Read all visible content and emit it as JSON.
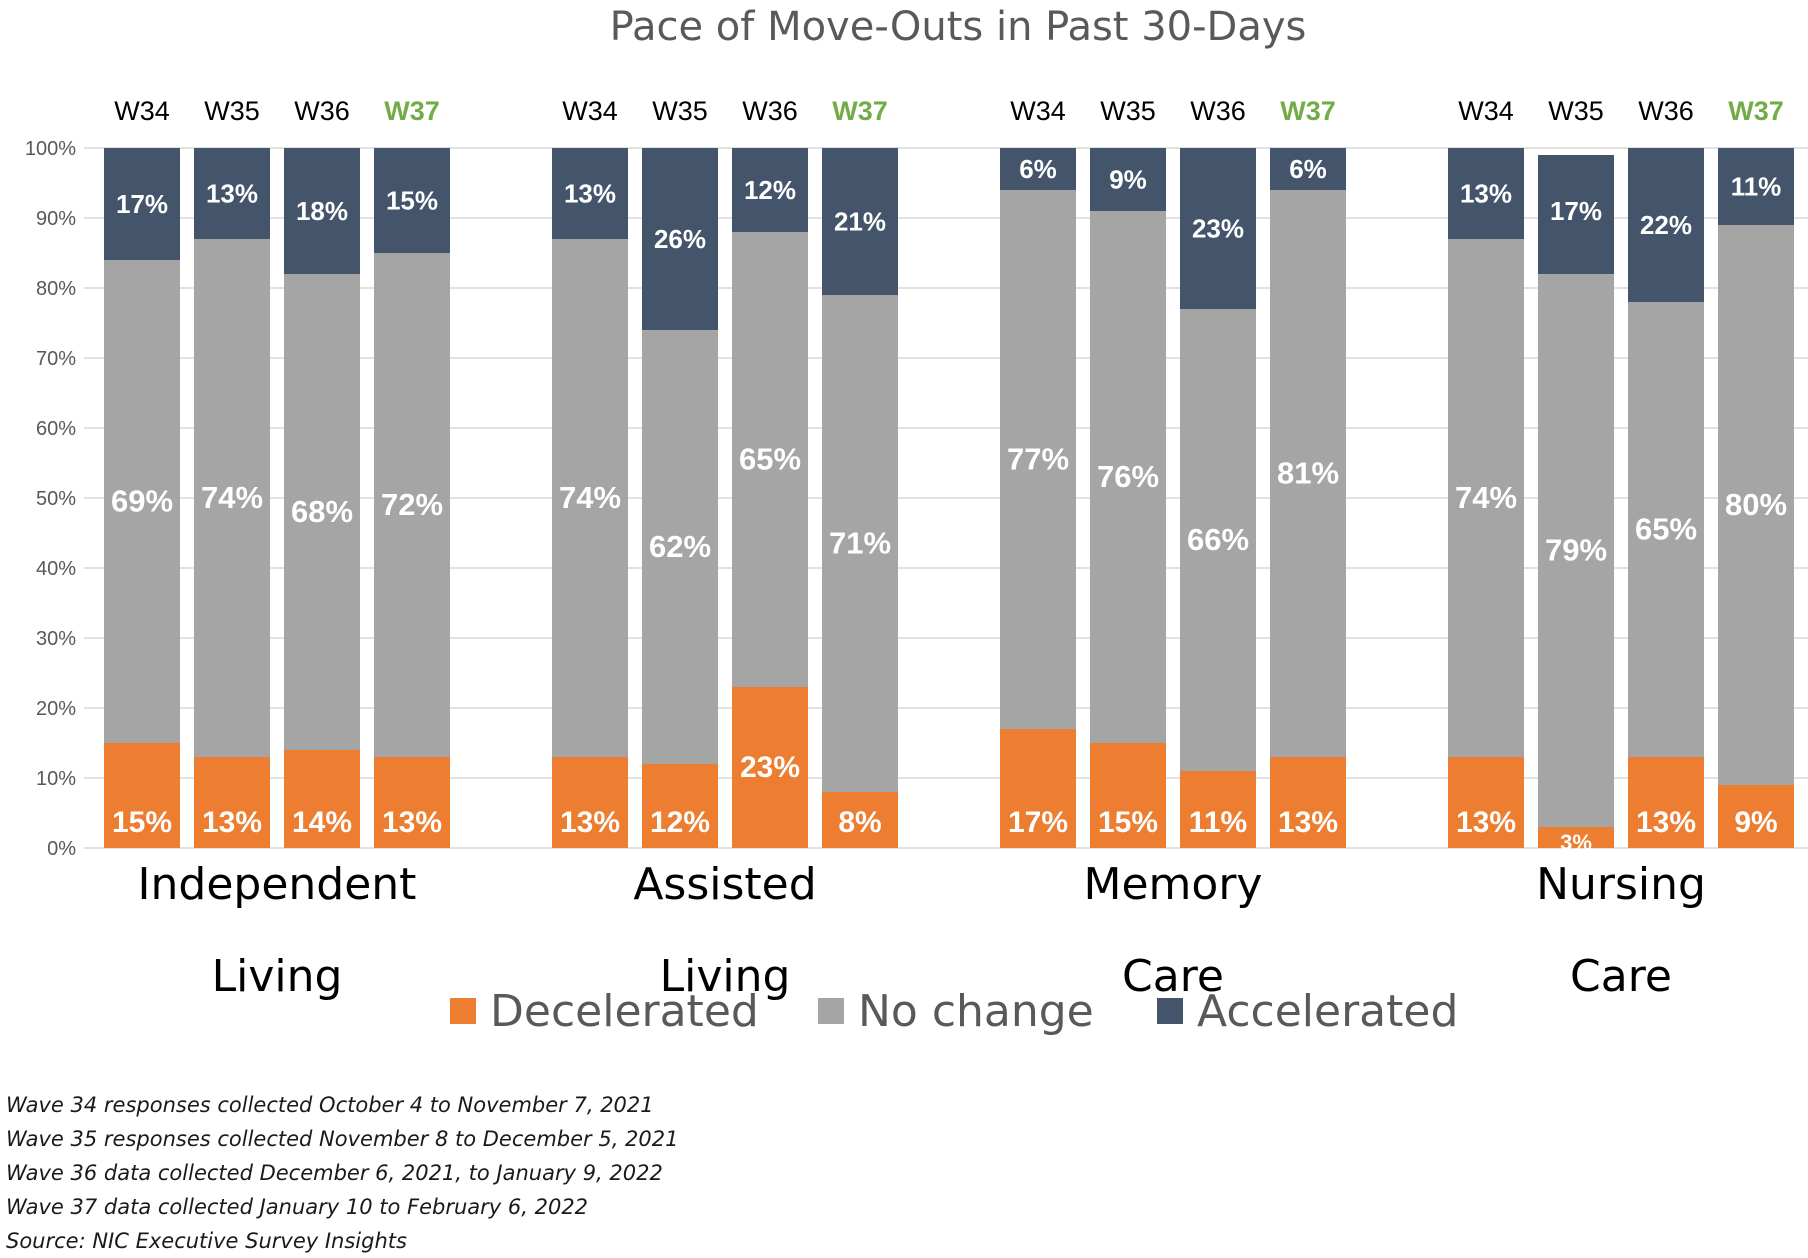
{
  "chart_data": {
    "type": "bar",
    "stacked": true,
    "title": "Pace of Move-Outs in Past 30-Days",
    "ylim": [
      0,
      100
    ],
    "y_ticks": [
      "0%",
      "10%",
      "20%",
      "30%",
      "40%",
      "50%",
      "60%",
      "70%",
      "80%",
      "90%",
      "100%"
    ],
    "legend": {
      "position": "bottom",
      "items": [
        {
          "name": "Decelerated",
          "color": "#ED7D31"
        },
        {
          "name": "No change",
          "color": "#A5A5A5"
        },
        {
          "name": "Accelerated",
          "color": "#44546A"
        }
      ]
    },
    "highlight_wave": "W37",
    "highlight_color": "#70AD47",
    "groups": [
      {
        "label_lines": [
          "Independent",
          "Living"
        ],
        "bars": [
          {
            "wave": "W34",
            "decelerated": 15,
            "no_change": 69,
            "accelerated": 17,
            "labels": [
              "15%",
              "69%",
              "17%"
            ]
          },
          {
            "wave": "W35",
            "decelerated": 13,
            "no_change": 74,
            "accelerated": 13,
            "labels": [
              "13%",
              "74%",
              "13%"
            ]
          },
          {
            "wave": "W36",
            "decelerated": 14,
            "no_change": 68,
            "accelerated": 18,
            "labels": [
              "14%",
              "68%",
              "18%"
            ]
          },
          {
            "wave": "W37",
            "decelerated": 13,
            "no_change": 72,
            "accelerated": 15,
            "labels": [
              "13%",
              "72%",
              "15%"
            ]
          }
        ]
      },
      {
        "label_lines": [
          "Assisted",
          "Living"
        ],
        "bars": [
          {
            "wave": "W34",
            "decelerated": 13,
            "no_change": 74,
            "accelerated": 13,
            "labels": [
              "13%",
              "74%",
              "13%"
            ]
          },
          {
            "wave": "W35",
            "decelerated": 12,
            "no_change": 62,
            "accelerated": 26,
            "labels": [
              "12%",
              "62%",
              "26%"
            ]
          },
          {
            "wave": "W36",
            "decelerated": 23,
            "no_change": 65,
            "accelerated": 12,
            "labels": [
              "23%",
              "65%",
              "12%"
            ]
          },
          {
            "wave": "W37",
            "decelerated": 8,
            "no_change": 71,
            "accelerated": 21,
            "labels": [
              "8%",
              "71%",
              "21%"
            ]
          }
        ]
      },
      {
        "label_lines": [
          "Memory",
          "Care"
        ],
        "bars": [
          {
            "wave": "W34",
            "decelerated": 17,
            "no_change": 77,
            "accelerated": 6,
            "labels": [
              "17%",
              "77%",
              "6%"
            ]
          },
          {
            "wave": "W35",
            "decelerated": 15,
            "no_change": 76,
            "accelerated": 9,
            "labels": [
              "15%",
              "76%",
              "9%"
            ]
          },
          {
            "wave": "W36",
            "decelerated": 11,
            "no_change": 66,
            "accelerated": 23,
            "labels": [
              "11%",
              "66%",
              "23%"
            ]
          },
          {
            "wave": "W37",
            "decelerated": 13,
            "no_change": 81,
            "accelerated": 6,
            "labels": [
              "13%",
              "81%",
              "6%"
            ]
          }
        ]
      },
      {
        "label_lines": [
          "Nursing",
          "Care"
        ],
        "bars": [
          {
            "wave": "W34",
            "decelerated": 13,
            "no_change": 74,
            "accelerated": 13,
            "labels": [
              "13%",
              "74%",
              "13%"
            ]
          },
          {
            "wave": "W35",
            "decelerated": 3,
            "no_change": 79,
            "accelerated": 17,
            "labels": [
              "3%",
              "79%",
              "17%"
            ]
          },
          {
            "wave": "W36",
            "decelerated": 13,
            "no_change": 65,
            "accelerated": 22,
            "labels": [
              "13%",
              "65%",
              "22%"
            ]
          },
          {
            "wave": "W37",
            "decelerated": 9,
            "no_change": 80,
            "accelerated": 11,
            "labels": [
              "9%",
              "80%",
              "11%"
            ]
          }
        ]
      }
    ]
  },
  "footnotes": [
    "Wave 34 responses collected October 4 to November 7, 2021",
    "Wave 35 responses collected November 8 to December 5, 2021",
    "Wave 36 data collected December 6, 2021, to January 9, 2022",
    "Wave 37 data collected January 10 to February 6, 2022",
    "Source: NIC Executive Survey Insights"
  ]
}
